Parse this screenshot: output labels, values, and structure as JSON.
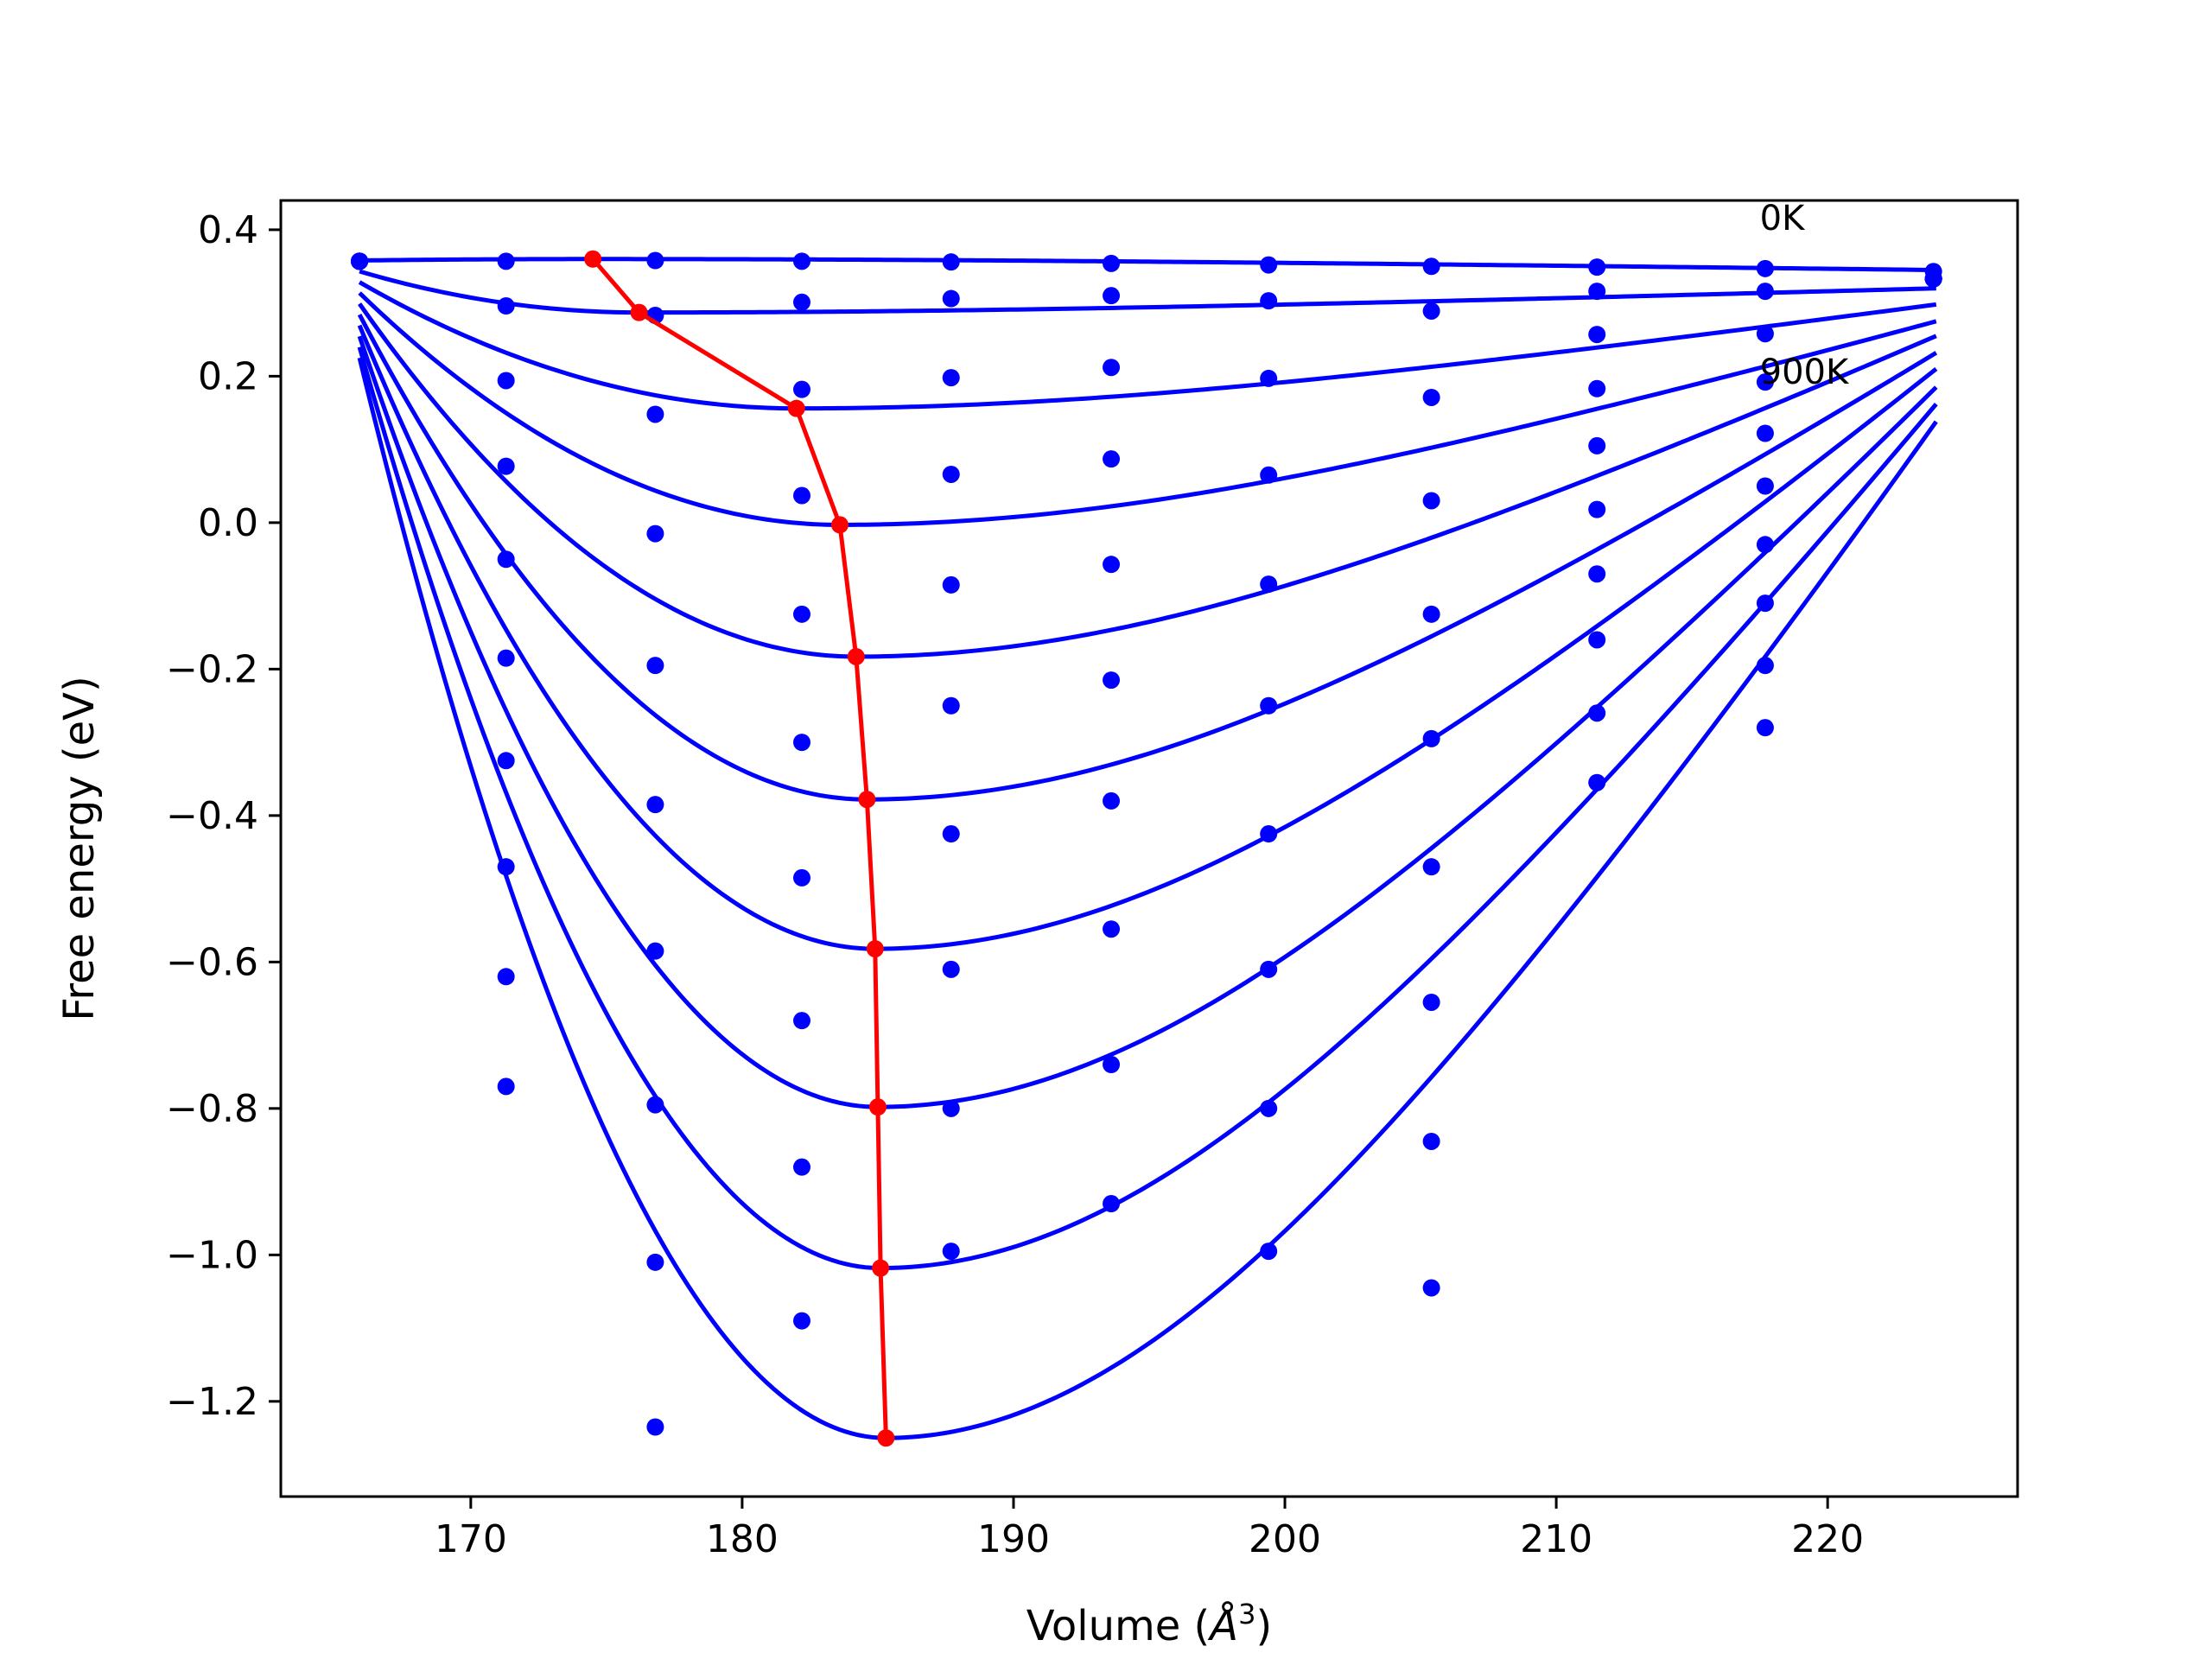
{
  "chart_data": {
    "type": "line",
    "title": "",
    "xlabel": "Volume",
    "xlabel_unit": "Å",
    "xlabel_exponent": "3",
    "ylabel": "Free energy (eV)",
    "xlim": [
      163,
      227
    ],
    "ylim": [
      -1.33,
      0.44
    ],
    "xticks": [
      170,
      180,
      190,
      200,
      210,
      220
    ],
    "yticks": [
      0.4,
      0.2,
      0.0,
      -0.2,
      -0.4,
      -0.6,
      -0.8,
      -1.0,
      -1.2
    ],
    "ytick_labels": [
      "0.4",
      "0.2",
      "0.0",
      "−0.2",
      "−0.4",
      "−0.6",
      "−0.8",
      "−1.0",
      "−1.2"
    ],
    "grid": false,
    "annotations": [
      {
        "text": "0K",
        "x": 217.5,
        "y": 0.4
      },
      {
        "text": "900K",
        "x": 217.5,
        "y": 0.19
      }
    ],
    "colors": {
      "curves": "#0000ff",
      "minima": "#ff0000",
      "axes": "#000000"
    },
    "volumes": [
      165.9,
      171.3,
      176.8,
      182.2,
      187.7,
      193.6,
      199.4,
      205.4,
      211.5,
      217.7,
      223.9
    ],
    "scatter_series": [
      {
        "values": [
          0.357,
          0.357,
          0.358,
          0.357,
          0.356,
          0.354,
          0.352,
          0.35,
          0.349,
          0.347,
          0.343
        ]
      },
      {
        "values": [
          0.357,
          0.296,
          0.283,
          0.301,
          0.306,
          0.31,
          0.303,
          0.289,
          0.316,
          0.316,
          0.333
        ]
      },
      {
        "values": [
          0.357,
          0.194,
          0.148,
          0.182,
          0.198,
          0.212,
          0.197,
          0.171,
          0.257,
          0.258,
          0.333
        ]
      },
      {
        "values": [
          0.357,
          0.077,
          -0.015,
          0.037,
          0.066,
          0.087,
          0.065,
          0.03,
          0.183,
          0.192,
          0.333
        ]
      },
      {
        "values": [
          0.357,
          -0.05,
          -0.195,
          -0.125,
          -0.085,
          -0.057,
          -0.084,
          -0.125,
          0.105,
          0.122,
          0.333
        ]
      },
      {
        "values": [
          0.357,
          -0.185,
          -0.385,
          -0.3,
          -0.25,
          -0.215,
          -0.25,
          -0.295,
          0.018,
          0.05,
          0.333
        ]
      },
      {
        "values": [
          0.357,
          -0.325,
          -0.585,
          -0.485,
          -0.425,
          -0.38,
          -0.425,
          -0.47,
          -0.07,
          -0.03,
          0.333
        ]
      },
      {
        "values": [
          0.357,
          -0.47,
          -0.795,
          -0.68,
          -0.61,
          -0.555,
          -0.61,
          -0.655,
          -0.16,
          -0.11,
          0.333
        ]
      },
      {
        "values": [
          0.357,
          -0.62,
          -1.01,
          -0.88,
          -0.8,
          -0.74,
          -0.8,
          -0.845,
          -0.26,
          -0.195,
          0.333
        ]
      },
      {
        "values": [
          0.357,
          -0.77,
          -1.235,
          -1.09,
          -0.995,
          -0.93,
          -0.995,
          -1.045,
          -0.355,
          -0.28,
          0.333
        ]
      }
    ],
    "fit_curves": [
      {
        "v0": 174.5,
        "f0": 0.36,
        "bulk": 0.015,
        "vend": 224.0,
        "fend": 0.345
      },
      {
        "v0": 176.2,
        "f0": 0.287,
        "bulk": 0.06,
        "vend": 224.0,
        "fend": 0.32
      },
      {
        "v0": 182.0,
        "f0": 0.156,
        "bulk": 0.11,
        "vend": 224.0,
        "fend": 0.298
      },
      {
        "v0": 183.6,
        "f0": -0.003,
        "bulk": 0.16,
        "vend": 224.0,
        "fend": 0.275
      },
      {
        "v0": 184.2,
        "f0": -0.183,
        "bulk": 0.21,
        "vend": 224.0,
        "fend": 0.255
      },
      {
        "v0": 184.6,
        "f0": -0.378,
        "bulk": 0.26,
        "vend": 224.0,
        "fend": 0.232
      },
      {
        "v0": 184.9,
        "f0": -0.582,
        "bulk": 0.31,
        "vend": 224.0,
        "fend": 0.21
      },
      {
        "v0": 185.0,
        "f0": -0.798,
        "bulk": 0.36,
        "vend": 224.0,
        "fend": 0.185
      },
      {
        "v0": 185.1,
        "f0": -1.018,
        "bulk": 0.41,
        "vend": 224.0,
        "fend": 0.162
      },
      {
        "v0": 185.3,
        "f0": -1.25,
        "bulk": 0.46,
        "vend": 224.0,
        "fend": 0.138
      }
    ],
    "fit_start": {
      "x": 165.9,
      "y_top": 0.358,
      "y_bottom": 0.225
    },
    "minima": [
      {
        "x": 174.5,
        "y": 0.36
      },
      {
        "x": 176.2,
        "y": 0.287
      },
      {
        "x": 182.0,
        "y": 0.156
      },
      {
        "x": 183.6,
        "y": -0.003
      },
      {
        "x": 184.2,
        "y": -0.183
      },
      {
        "x": 184.6,
        "y": -0.378
      },
      {
        "x": 184.9,
        "y": -0.582
      },
      {
        "x": 185.0,
        "y": -0.798
      },
      {
        "x": 185.1,
        "y": -1.018
      },
      {
        "x": 185.3,
        "y": -1.25
      }
    ]
  }
}
